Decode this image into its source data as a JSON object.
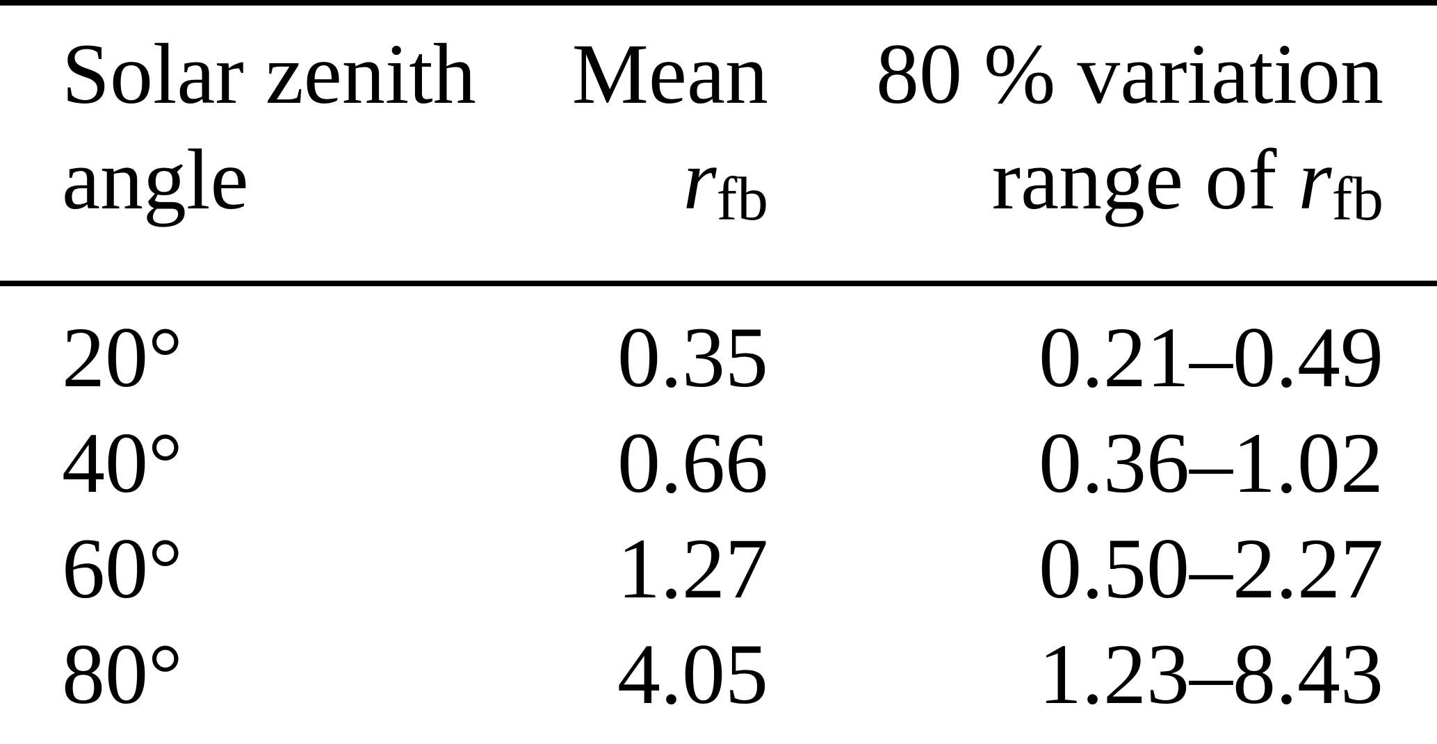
{
  "page": {
    "background_color": "#ffffff",
    "text_color": "#000000",
    "rule_color": "#000000"
  },
  "table": {
    "header": {
      "col1": {
        "line1": "Solar zenith",
        "line2": "angle"
      },
      "col2": {
        "line1": "Mean",
        "symbol": "r",
        "symbol_sub": "fb"
      },
      "col3": {
        "line1": "80 % variation",
        "line2_prefix": "range of ",
        "symbol": "r",
        "symbol_sub": "fb"
      }
    },
    "rows": [
      {
        "angle": "20°",
        "mean": "0.35",
        "range": "0.21–0.49"
      },
      {
        "angle": "40°",
        "mean": "0.66",
        "range": "0.36–1.02"
      },
      {
        "angle": "60°",
        "mean": "1.27",
        "range": "0.50–2.27"
      },
      {
        "angle": "80°",
        "mean": "4.05",
        "range": "1.23–8.43"
      }
    ]
  },
  "chart_data": {
    "type": "table",
    "title": "",
    "columns": [
      "Solar zenith angle",
      "Mean r_fb",
      "80 % variation range of r_fb"
    ],
    "angles_deg": [
      20,
      40,
      60,
      80
    ],
    "mean_rfb": [
      0.35,
      0.66,
      1.27,
      4.05
    ],
    "range_rfb_low": [
      0.21,
      0.36,
      0.5,
      1.23
    ],
    "range_rfb_high": [
      0.49,
      1.02,
      2.27,
      8.43
    ]
  }
}
